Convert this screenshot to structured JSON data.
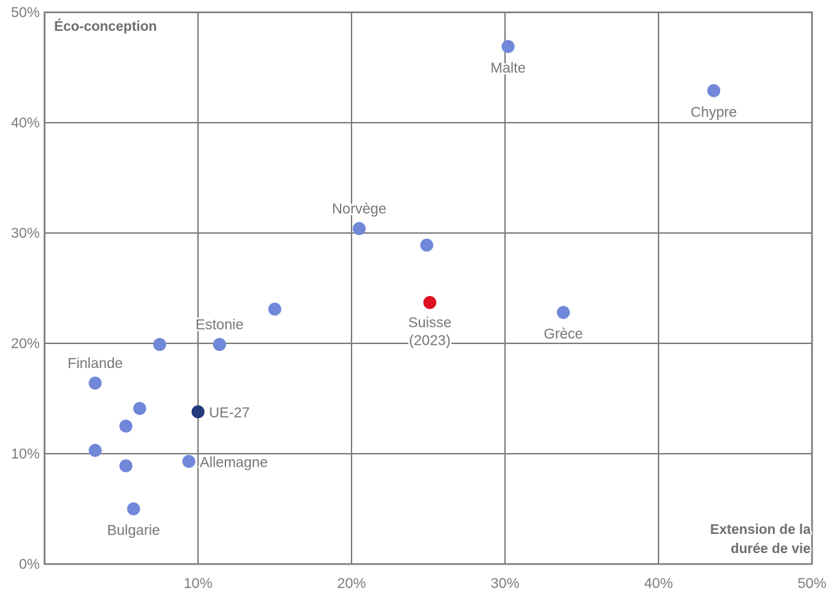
{
  "chart_data": {
    "type": "scatter",
    "title": "",
    "xlabel": "Extension de la durée de vie",
    "ylabel": "Éco-conception",
    "xlabel_lines": [
      "Extension de la",
      "durée de vie"
    ],
    "ylabel_lines": [
      "Éco-conception"
    ],
    "x_axis": {
      "range": [
        0,
        50
      ],
      "tick_values": [
        10,
        20,
        30,
        40,
        50
      ],
      "tick_labels": [
        "10%",
        "20%",
        "30%",
        "40%",
        "50%"
      ],
      "unit": "%"
    },
    "y_axis": {
      "range": [
        0,
        50
      ],
      "tick_values": [
        0,
        10,
        20,
        30,
        40,
        50
      ],
      "tick_labels": [
        "0%",
        "10%",
        "20%",
        "30%",
        "40%",
        "50%"
      ],
      "unit": "%"
    },
    "grid": true,
    "legend": "none",
    "series_colors": {
      "pays": "#7187d8",
      "ue27": "#24397e",
      "suisse": "#dc1020"
    },
    "grid_color": "#7d7d7d",
    "points": [
      {
        "label": "Malte",
        "x": 30.2,
        "y": 46.9,
        "series": "pays",
        "label_pos": "below"
      },
      {
        "label": "Chypre",
        "x": 43.6,
        "y": 42.9,
        "series": "pays",
        "label_pos": "below"
      },
      {
        "label": "Norvège",
        "x": 20.5,
        "y": 30.4,
        "series": "pays",
        "label_pos": "above"
      },
      {
        "label": "",
        "x": 24.9,
        "y": 28.9,
        "series": "pays",
        "label_pos": "none"
      },
      {
        "label": "Suisse",
        "label2": "(2023)",
        "x": 25.1,
        "y": 23.7,
        "series": "suisse",
        "label_pos": "below"
      },
      {
        "label": "Grèce",
        "x": 33.8,
        "y": 22.8,
        "series": "pays",
        "label_pos": "below"
      },
      {
        "label": "",
        "x": 15.0,
        "y": 23.1,
        "series": "pays",
        "label_pos": "none"
      },
      {
        "label": "Estonie",
        "x": 11.4,
        "y": 19.9,
        "series": "pays",
        "label_pos": "above"
      },
      {
        "label": "",
        "x": 7.5,
        "y": 19.9,
        "series": "pays",
        "label_pos": "none"
      },
      {
        "label": "Finlande",
        "x": 3.3,
        "y": 16.4,
        "series": "pays",
        "label_pos": "above"
      },
      {
        "label": "",
        "x": 6.2,
        "y": 14.1,
        "series": "pays",
        "label_pos": "none"
      },
      {
        "label": "UE-27",
        "x": 10.0,
        "y": 13.8,
        "series": "ue27",
        "label_pos": "right"
      },
      {
        "label": "",
        "x": 5.3,
        "y": 12.5,
        "series": "pays",
        "label_pos": "none"
      },
      {
        "label": "",
        "x": 3.3,
        "y": 10.3,
        "series": "pays",
        "label_pos": "none"
      },
      {
        "label": "Allemagne",
        "x": 9.4,
        "y": 9.3,
        "series": "pays",
        "label_pos": "right"
      },
      {
        "label": "",
        "x": 5.3,
        "y": 8.9,
        "series": "pays",
        "label_pos": "none"
      },
      {
        "label": "Bulgarie",
        "x": 5.8,
        "y": 5.0,
        "series": "pays",
        "label_pos": "below"
      }
    ]
  }
}
